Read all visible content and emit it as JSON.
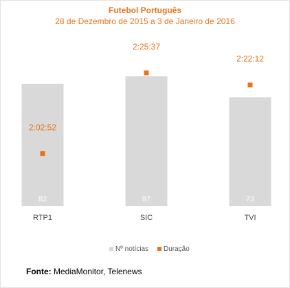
{
  "chart_data": {
    "type": "bar",
    "title": "Futebol Português",
    "subtitle": "28 de Dezembro de 2015 a 3 de Janeiro de 2016",
    "categories": [
      "RTP1",
      "SIC",
      "TVI"
    ],
    "series": [
      {
        "name": "Nº notícias",
        "type": "bar",
        "color": "#d9d9d9",
        "values": [
          82,
          87,
          73
        ]
      },
      {
        "name": "Duração",
        "type": "marker",
        "color": "#e8731c",
        "values": [
          "2:02:52",
          "2:25:37",
          "2:22:12"
        ]
      }
    ],
    "legend_position": "bottom",
    "grid": false
  },
  "source": {
    "label": "Fonte:",
    "text": "MediaMonitor, Telenews"
  }
}
